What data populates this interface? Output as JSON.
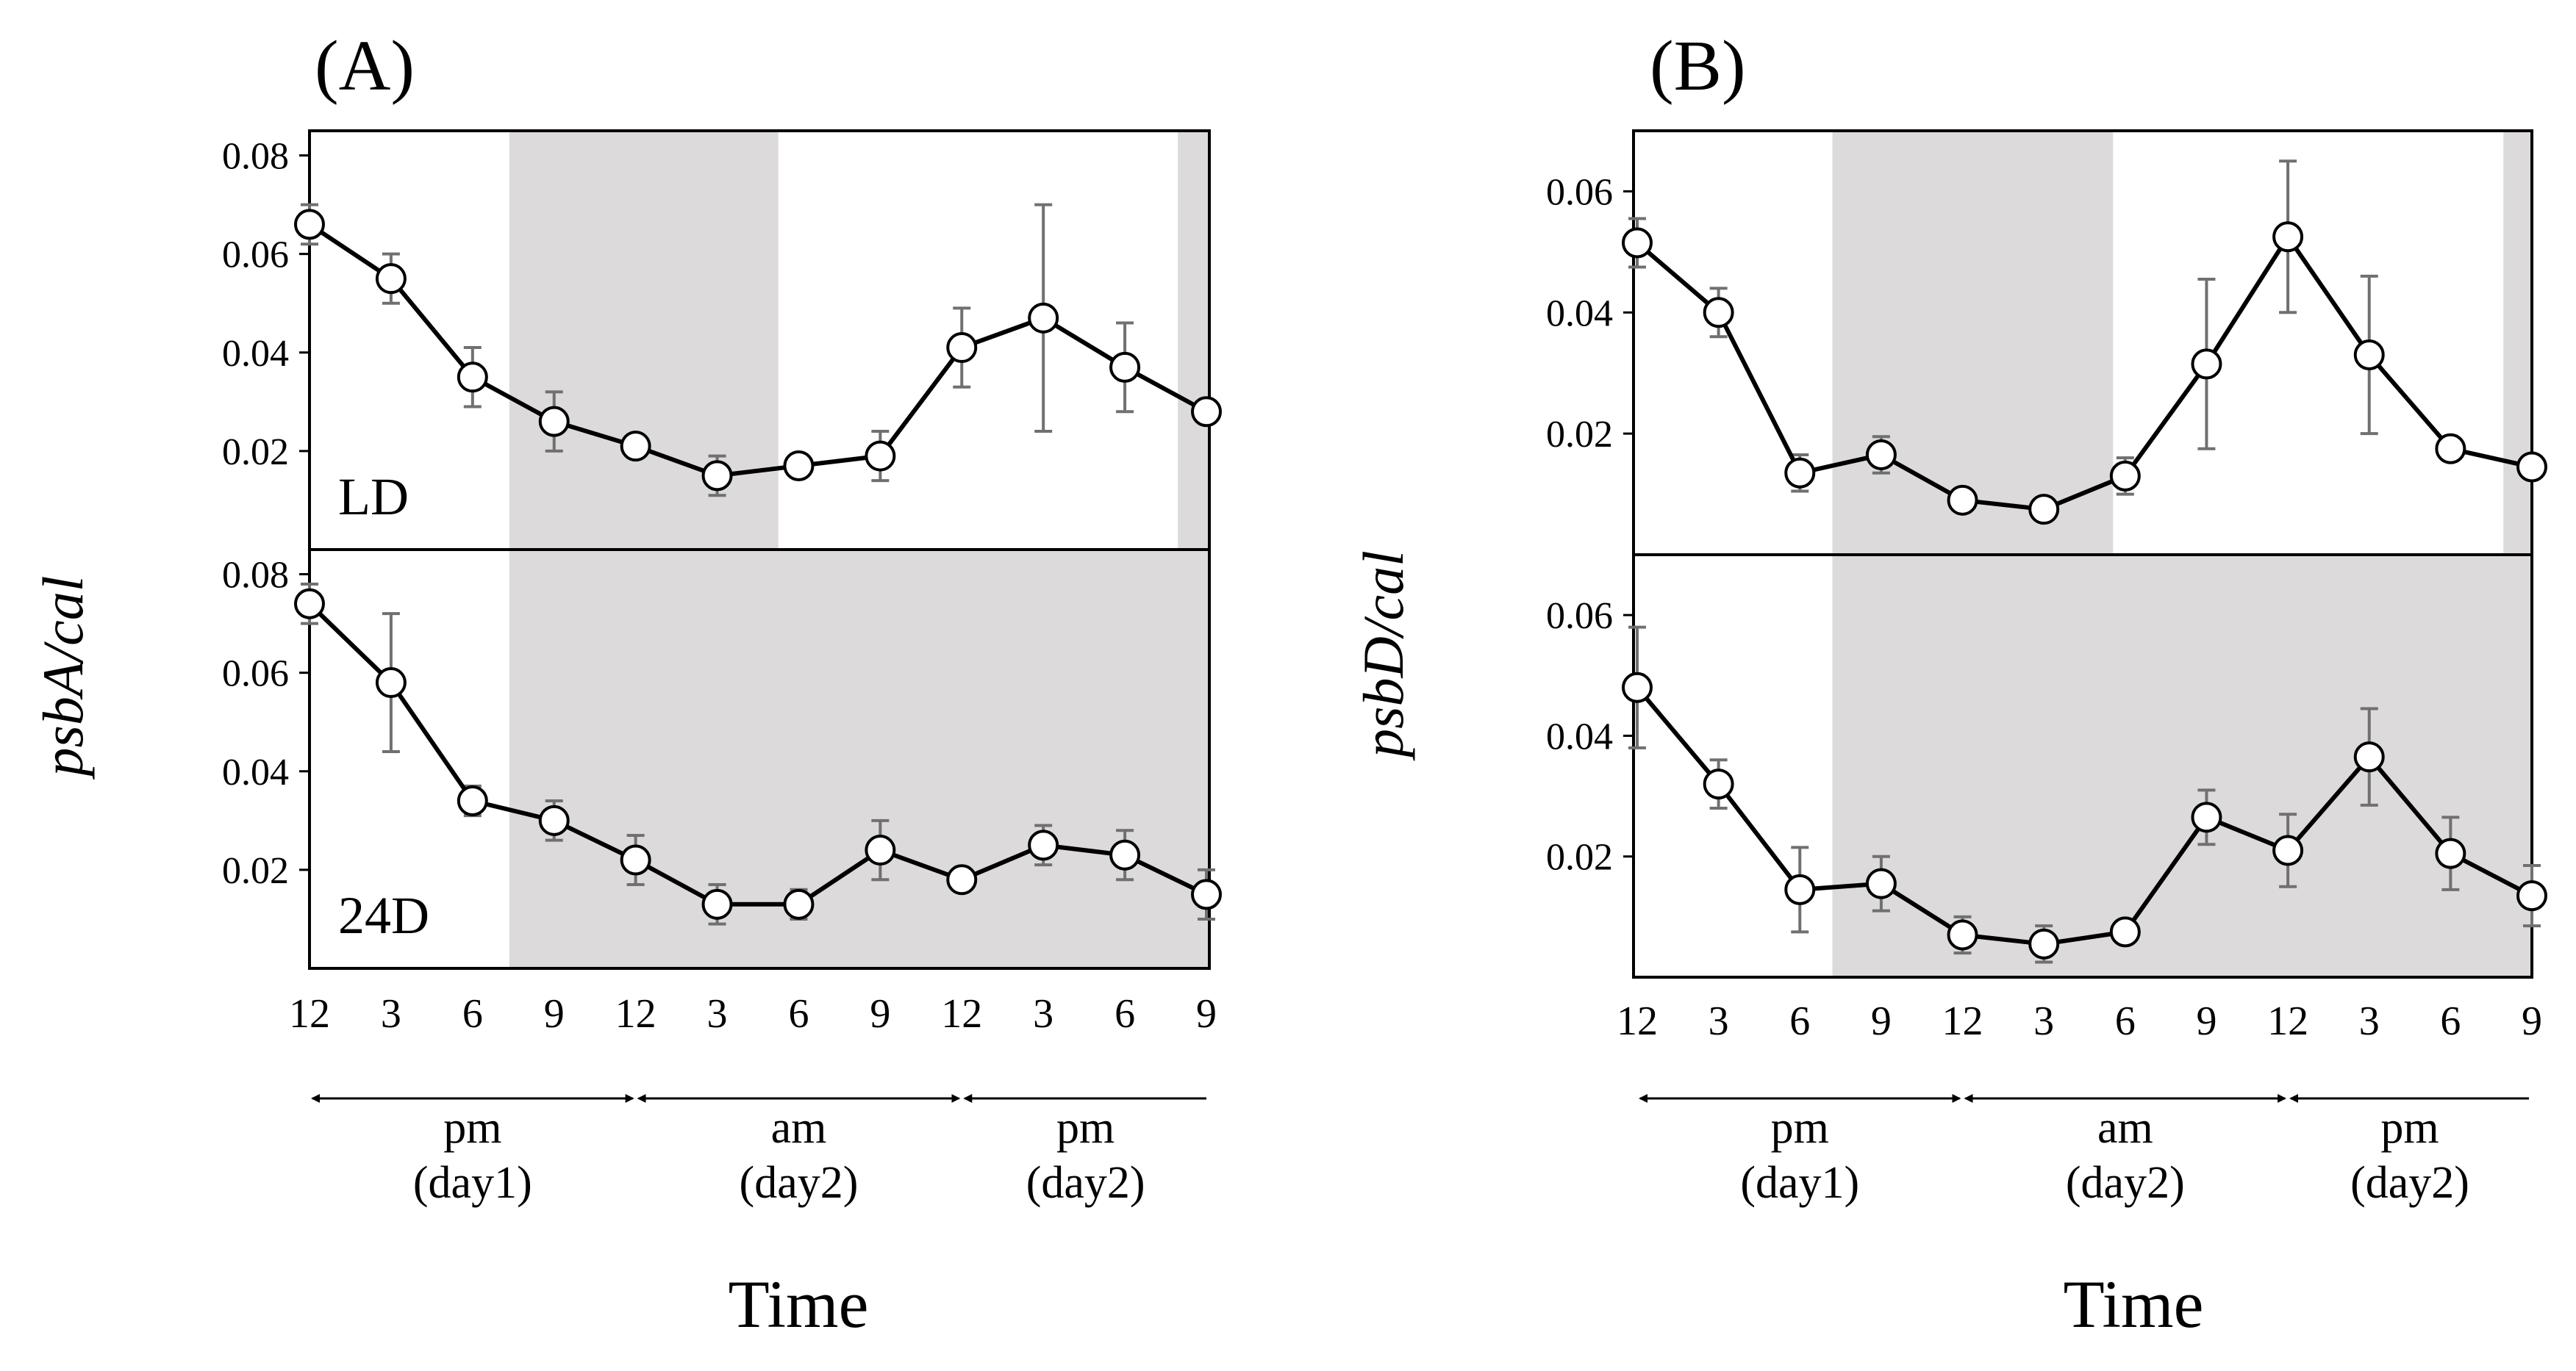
{
  "figure": {
    "x_axis_label": "Time",
    "time_ticks": [
      "12",
      "3",
      "6",
      "9",
      "12",
      "3",
      "6",
      "9",
      "12",
      "3",
      "6",
      "9"
    ],
    "periods": [
      {
        "label": "pm",
        "sub": "(day1)"
      },
      {
        "label": "am",
        "sub": "(day2)"
      },
      {
        "label": "pm",
        "sub": "(day2)"
      }
    ],
    "colors": {
      "dark_shading": "#dcdada",
      "line": "#000000",
      "error_bar": "#707070",
      "marker_fill": "#ffffff"
    }
  },
  "chart_data": [
    {
      "type": "line",
      "panel": "(A)",
      "gene": "psbA",
      "ylabel_gene": "psbA",
      "ylabel_sep": "/",
      "ylabel_ref": "cal",
      "subplots": [
        {
          "condition": "LD",
          "ylim": [
            0,
            0.085
          ],
          "yticks": [
            "0.02",
            "0.04",
            "0.06",
            "0.08"
          ],
          "ytick_values": [
            0.02,
            0.04,
            0.06,
            0.08
          ],
          "dark_periods": [
            [
              2.45,
              5.75
            ],
            [
              10.65,
              11.3
            ]
          ],
          "values": [
            0.066,
            0.055,
            0.035,
            0.026,
            0.021,
            0.015,
            0.017,
            0.019,
            0.041,
            0.047,
            0.037,
            0.028
          ],
          "errors": [
            0.004,
            0.005,
            0.006,
            0.006,
            0.002,
            0.004,
            0.002,
            0.005,
            0.008,
            0.023,
            0.009,
            0.002
          ]
        },
        {
          "condition": "24D",
          "ylim": [
            0,
            0.085
          ],
          "yticks": [
            "0.02",
            "0.04",
            "0.06",
            "0.08"
          ],
          "ytick_values": [
            0.02,
            0.04,
            0.06,
            0.08
          ],
          "dark_periods": [
            [
              2.45,
              11.3
            ]
          ],
          "values": [
            0.074,
            0.058,
            0.034,
            0.03,
            0.022,
            0.013,
            0.013,
            0.024,
            0.018,
            0.025,
            0.023,
            0.015
          ],
          "errors": [
            0.004,
            0.014,
            0.003,
            0.004,
            0.005,
            0.004,
            0.003,
            0.006,
            0.002,
            0.004,
            0.005,
            0.005
          ]
        }
      ]
    },
    {
      "type": "line",
      "panel": "(B)",
      "gene": "psbD",
      "ylabel_gene": "psbD",
      "ylabel_sep": "/",
      "ylabel_ref": "cal",
      "subplots": [
        {
          "condition": "",
          "ylim": [
            0,
            0.07
          ],
          "yticks": [
            "0.02",
            "0.04",
            "0.06"
          ],
          "ytick_values": [
            0.02,
            0.04,
            0.06
          ],
          "dark_periods": [
            [
              2.4,
              5.85
            ],
            [
              10.65,
              11.3
            ]
          ],
          "values": [
            0.0515,
            0.04,
            0.0135,
            0.0165,
            0.009,
            0.0075,
            0.013,
            0.0315,
            0.0525,
            0.033,
            0.0175,
            0.0145
          ],
          "errors": [
            0.004,
            0.004,
            0.003,
            0.003,
            0.001,
            0.001,
            0.003,
            0.014,
            0.0125,
            0.013,
            0.001,
            0.001
          ]
        },
        {
          "condition": "",
          "ylim": [
            0,
            0.07
          ],
          "yticks": [
            "0.02",
            "0.04",
            "0.06"
          ],
          "ytick_values": [
            0.02,
            0.04,
            0.06
          ],
          "dark_periods": [
            [
              2.4,
              11.3
            ]
          ],
          "values": [
            0.048,
            0.032,
            0.0145,
            0.0155,
            0.007,
            0.0055,
            0.0075,
            0.0265,
            0.021,
            0.0365,
            0.0205,
            0.0135
          ],
          "errors": [
            0.01,
            0.004,
            0.007,
            0.0045,
            0.003,
            0.003,
            0.001,
            0.0045,
            0.006,
            0.008,
            0.006,
            0.005
          ]
        }
      ]
    }
  ]
}
